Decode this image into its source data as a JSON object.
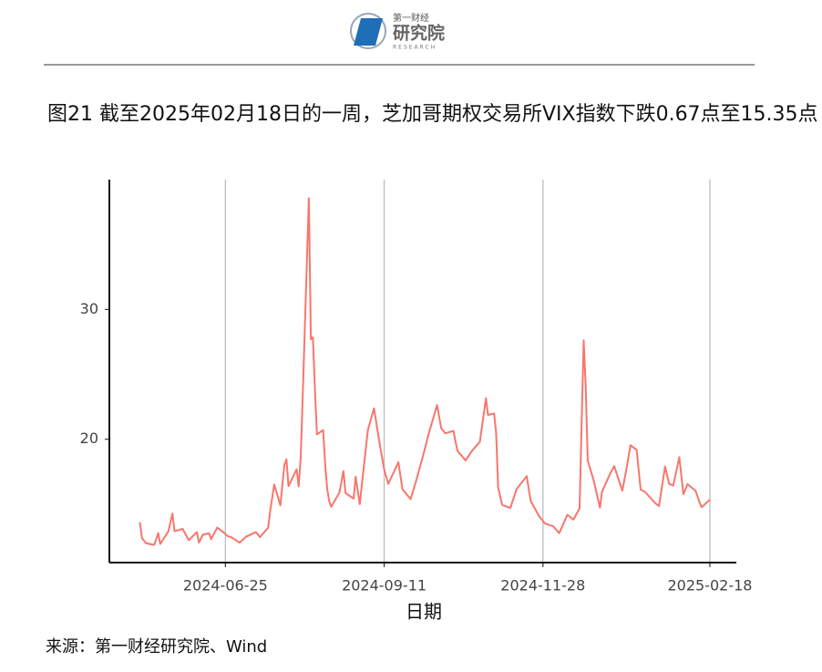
{
  "header": {
    "logo_top": "第一财经",
    "logo_main": "研究院",
    "logo_en": "RESEARCH"
  },
  "chart_data": {
    "type": "line",
    "title": "图21  截至2025年02月18日的一周，芝加哥期权交易所VIX指数下跌0.67点至15.35点",
    "x_label": "日期",
    "color": "#f8766d",
    "x": [
      "2024-05-14",
      "2024-05-15",
      "2024-05-17",
      "2024-05-21",
      "2024-05-23",
      "2024-05-24",
      "2024-05-28",
      "2024-05-30",
      "2024-05-31",
      "2024-06-04",
      "2024-06-07",
      "2024-06-11",
      "2024-06-12",
      "2024-06-14",
      "2024-06-17",
      "2024-06-18",
      "2024-06-21",
      "2024-06-24",
      "2024-06-26",
      "2024-06-28",
      "2024-07-02",
      "2024-07-05",
      "2024-07-10",
      "2024-07-12",
      "2024-07-16",
      "2024-07-17",
      "2024-07-19",
      "2024-07-22",
      "2024-07-24",
      "2024-07-25",
      "2024-07-26",
      "2024-07-30",
      "2024-07-31",
      "2024-08-01",
      "2024-08-02",
      "2024-08-05",
      "2024-08-06",
      "2024-08-07",
      "2024-08-08",
      "2024-08-09",
      "2024-08-12",
      "2024-08-13",
      "2024-08-14",
      "2024-08-15",
      "2024-08-16",
      "2024-08-20",
      "2024-08-22",
      "2024-08-23",
      "2024-08-27",
      "2024-08-28",
      "2024-08-30",
      "2024-09-03",
      "2024-09-06",
      "2024-09-09",
      "2024-09-11",
      "2024-09-13",
      "2024-09-18",
      "2024-09-20",
      "2024-09-24",
      "2024-09-27",
      "2024-10-01",
      "2024-10-03",
      "2024-10-07",
      "2024-10-09",
      "2024-10-11",
      "2024-10-15",
      "2024-10-17",
      "2024-10-21",
      "2024-10-24",
      "2024-10-28",
      "2024-10-31",
      "2024-11-01",
      "2024-11-04",
      "2024-11-05",
      "2024-11-06",
      "2024-11-08",
      "2024-11-12",
      "2024-11-15",
      "2024-11-20",
      "2024-11-22",
      "2024-11-26",
      "2024-11-29",
      "2024-12-03",
      "2024-12-06",
      "2024-12-10",
      "2024-12-13",
      "2024-12-16",
      "2024-12-18",
      "2024-12-19",
      "2024-12-20",
      "2024-12-23",
      "2024-12-26",
      "2024-12-27",
      "2024-12-31",
      "2025-01-02",
      "2025-01-06",
      "2025-01-08",
      "2025-01-10",
      "2025-01-13",
      "2025-01-15",
      "2025-01-17",
      "2025-01-22",
      "2025-01-24",
      "2025-01-27",
      "2025-01-29",
      "2025-01-31",
      "2025-02-03",
      "2025-02-05",
      "2025-02-07",
      "2025-02-11",
      "2025-02-13",
      "2025-02-14",
      "2025-02-18"
    ],
    "values": [
      13.6,
      12.4,
      11.99,
      11.86,
      12.77,
      11.93,
      12.92,
      14.28,
      12.92,
      13.1,
      12.22,
      12.85,
      12.04,
      12.66,
      12.75,
      12.3,
      13.2,
      12.84,
      12.55,
      12.44,
      12.03,
      12.48,
      12.85,
      12.46,
      13.19,
      14.48,
      16.52,
      14.91,
      18.04,
      18.46,
      16.39,
      17.69,
      16.36,
      18.59,
      23.39,
      38.57,
      27.71,
      27.85,
      23.79,
      20.37,
      20.71,
      18.12,
      16.19,
      15.23,
      14.8,
      15.88,
      17.55,
      15.86,
      15.43,
      17.11,
      15.0,
      20.72,
      22.38,
      19.45,
      17.69,
      16.56,
      18.23,
      16.15,
      15.39,
      16.96,
      19.26,
      20.49,
      22.64,
      20.86,
      20.46,
      20.64,
      19.11,
      18.37,
      19.08,
      19.8,
      23.16,
      21.88,
      21.98,
      20.49,
      16.27,
      14.94,
      14.71,
      16.14,
      17.16,
      15.24,
      14.1,
      13.51,
      13.3,
      12.77,
      14.18,
      13.81,
      14.69,
      27.62,
      24.09,
      18.36,
      16.78,
      14.73,
      15.95,
      17.35,
      17.93,
      16.04,
      17.7,
      19.54,
      19.19,
      16.12,
      15.97,
      15.1,
      14.85,
      17.9,
      16.56,
      16.43,
      18.62,
      15.77,
      16.54,
      16.02,
      15.1,
      14.77,
      15.35
    ],
    "xlim": [
      "2024-04-29",
      "2025-03-03"
    ],
    "xticks": [
      "2024-06-25",
      "2024-09-11",
      "2024-11-28",
      "2025-02-18"
    ],
    "ylim": [
      10.5,
      40
    ],
    "yticks": [
      20,
      30
    ],
    "grid_x": true
  },
  "source": "来源：第一财经研究院、Wind"
}
